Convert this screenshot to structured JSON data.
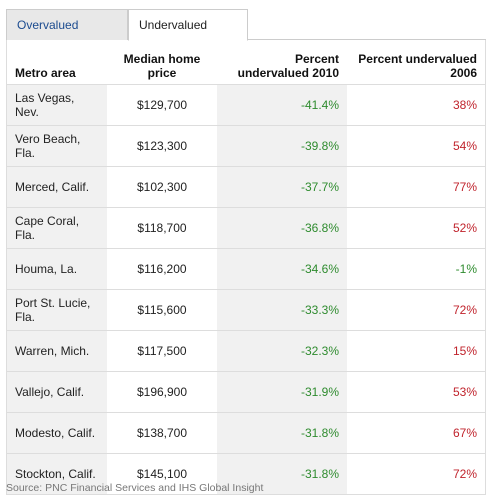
{
  "tabs": [
    {
      "label": "Overvalued"
    },
    {
      "label": "Undervalued"
    }
  ],
  "table": {
    "headers": {
      "metro": "Metro area",
      "price": "Median home price",
      "pct2010": "Percent undervalued 2010",
      "pct2006": "Percent undervalued 2006"
    },
    "rows": [
      {
        "metro": "Las Vegas, Nev.",
        "price": "$129,700",
        "pct2010": "-41.4%",
        "pct2006": "38%",
        "color2006": "red"
      },
      {
        "metro": "Vero Beach, Fla.",
        "price": "$123,300",
        "pct2010": "-39.8%",
        "pct2006": "54%",
        "color2006": "red"
      },
      {
        "metro": "Merced, Calif.",
        "price": "$102,300",
        "pct2010": "-37.7%",
        "pct2006": "77%",
        "color2006": "red"
      },
      {
        "metro": "Cape Coral, Fla.",
        "price": "$118,700",
        "pct2010": "-36.8%",
        "pct2006": "52%",
        "color2006": "red"
      },
      {
        "metro": "Houma, La.",
        "price": "$116,200",
        "pct2010": "-34.6%",
        "pct2006": "-1%",
        "color2006": "green"
      },
      {
        "metro": "Port St. Lucie, Fla.",
        "price": "$115,600",
        "pct2010": "-33.3%",
        "pct2006": "72%",
        "color2006": "red"
      },
      {
        "metro": "Warren, Mich.",
        "price": "$117,500",
        "pct2010": "-32.3%",
        "pct2006": "15%",
        "color2006": "red"
      },
      {
        "metro": "Vallejo, Calif.",
        "price": "$196,900",
        "pct2010": "-31.9%",
        "pct2006": "53%",
        "color2006": "red"
      },
      {
        "metro": "Modesto, Calif.",
        "price": "$138,700",
        "pct2010": "-31.8%",
        "pct2006": "67%",
        "color2006": "red"
      },
      {
        "metro": "Stockton, Calif.",
        "price": "$145,100",
        "pct2010": "-31.8%",
        "pct2006": "72%",
        "color2006": "red"
      }
    ]
  },
  "source": "Source: PNC Financial Services and IHS Global Insight",
  "colors": {
    "positive": "#c0232c",
    "negative": "#2e8b2e",
    "tab_link": "#1b4b8f"
  }
}
